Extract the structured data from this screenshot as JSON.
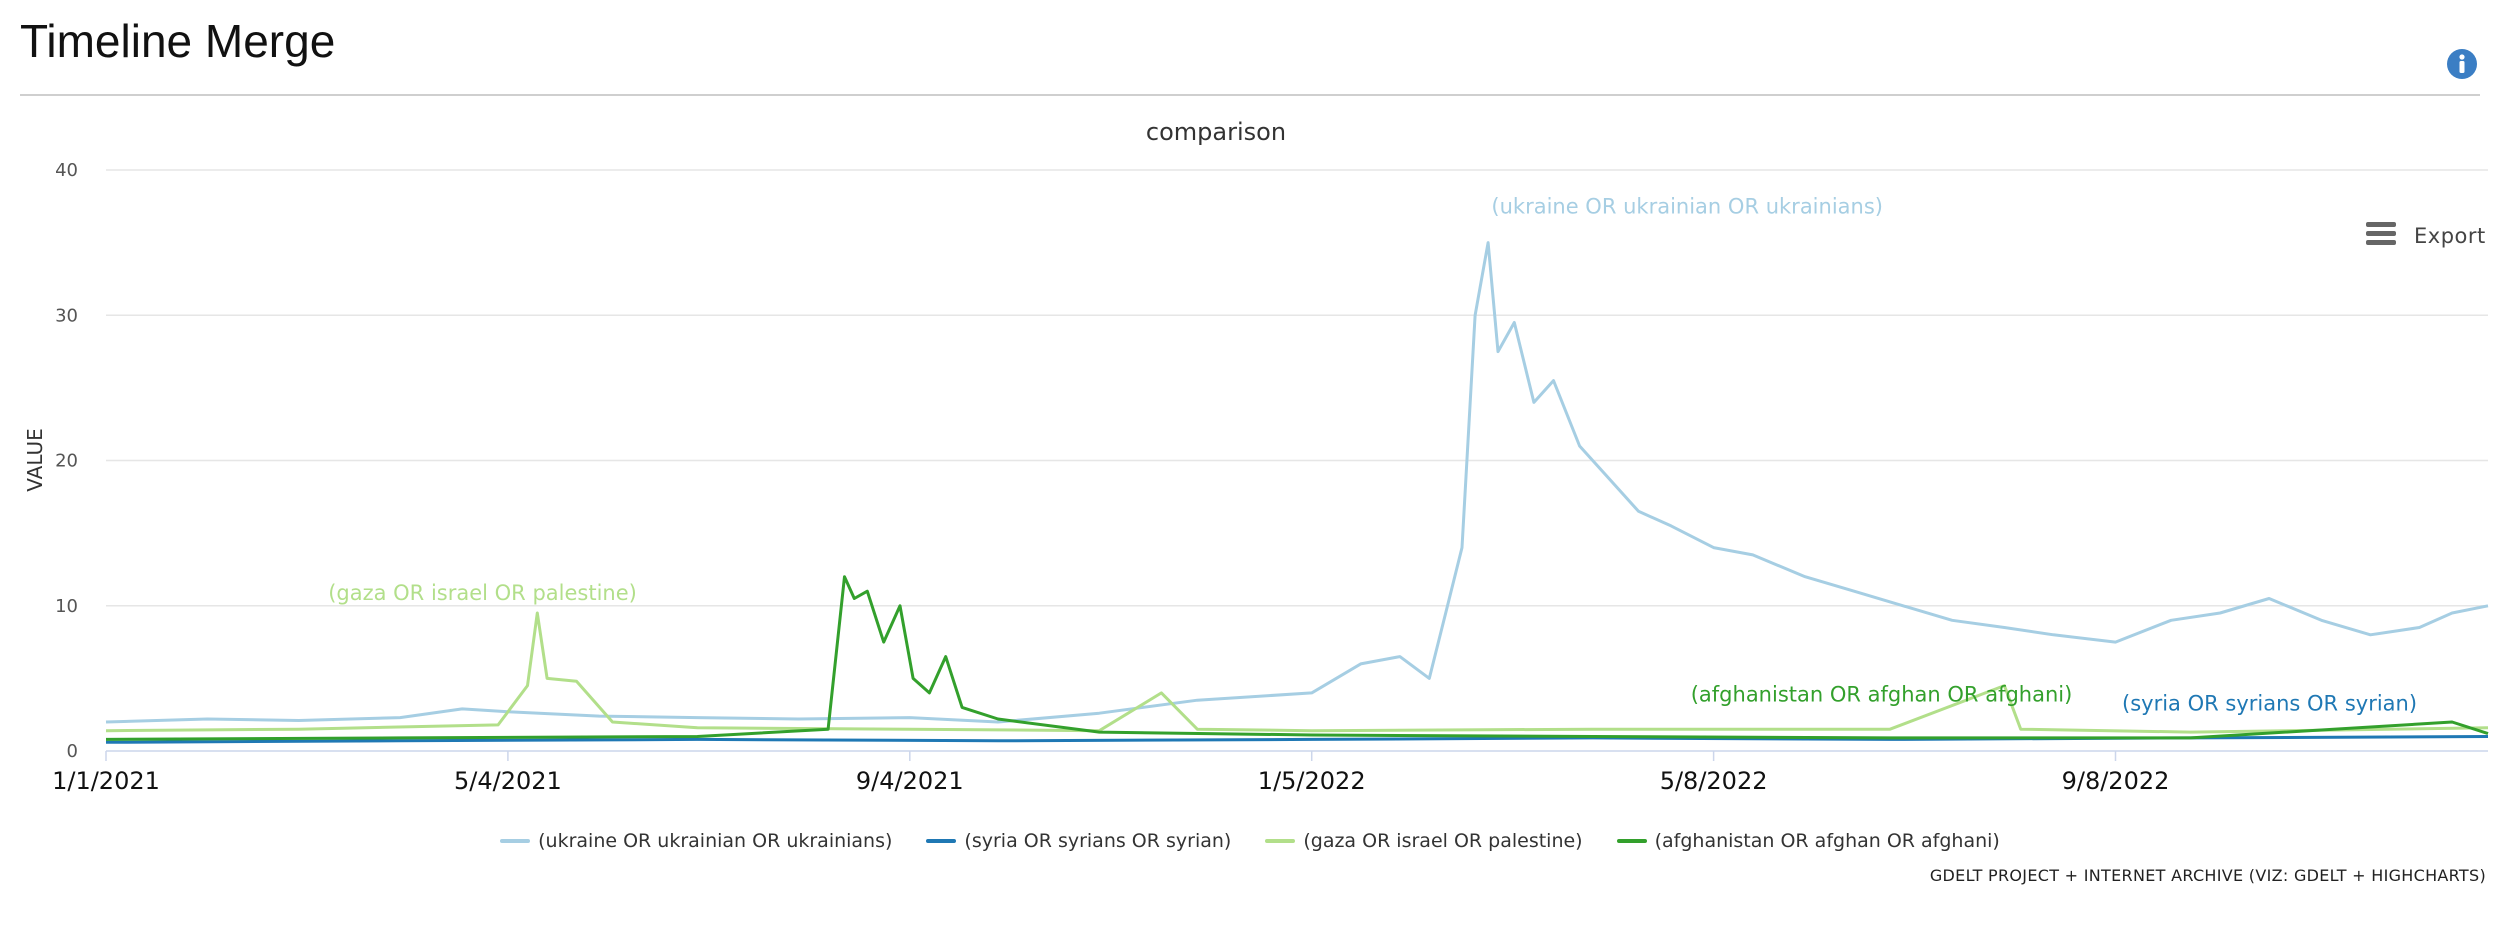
{
  "page": {
    "title": "Timeline Merge"
  },
  "toolbar": {
    "export_label": "Export"
  },
  "icons": {
    "info": "info-icon",
    "menu": "hamburger-icon"
  },
  "credits": "GDELT PROJECT + INTERNET ARCHIVE (VIZ: GDELT + HIGHCHARTS)",
  "chart_data": {
    "type": "line",
    "title": "comparison",
    "ylabel": "VALUE",
    "xlabel": "",
    "ylim": [
      0,
      40
    ],
    "yticks": [
      0,
      10,
      20,
      30,
      40
    ],
    "xlim": [
      "2021-01-01",
      "2022-12-31"
    ],
    "xticks": [
      {
        "date": "2021-01-01",
        "label": "1/1/2021"
      },
      {
        "date": "2021-05-04",
        "label": "5/4/2021"
      },
      {
        "date": "2021-09-04",
        "label": "9/4/2021"
      },
      {
        "date": "2022-01-05",
        "label": "1/5/2022"
      },
      {
        "date": "2022-05-08",
        "label": "5/8/2022"
      },
      {
        "date": "2022-09-08",
        "label": "9/8/2022"
      }
    ],
    "grid": true,
    "legend_position": "bottom-center",
    "series": [
      {
        "name": "(ukraine OR ukrainian OR ukrainians)",
        "color": "#a6cee3",
        "points": [
          [
            "2021-01-01",
            2.0
          ],
          [
            "2021-02-01",
            2.2
          ],
          [
            "2021-03-01",
            2.1
          ],
          [
            "2021-04-01",
            2.3
          ],
          [
            "2021-04-20",
            2.9
          ],
          [
            "2021-05-04",
            2.7
          ],
          [
            "2021-06-01",
            2.4
          ],
          [
            "2021-07-01",
            2.3
          ],
          [
            "2021-08-01",
            2.2
          ],
          [
            "2021-09-04",
            2.3
          ],
          [
            "2021-10-01",
            2.0
          ],
          [
            "2021-11-01",
            2.6
          ],
          [
            "2021-12-01",
            3.5
          ],
          [
            "2022-01-05",
            4.0
          ],
          [
            "2022-01-20",
            6.0
          ],
          [
            "2022-02-01",
            6.5
          ],
          [
            "2022-02-10",
            5.0
          ],
          [
            "2022-02-15",
            9.5
          ],
          [
            "2022-02-20",
            14.0
          ],
          [
            "2022-02-24",
            30.0
          ],
          [
            "2022-02-28",
            35.0
          ],
          [
            "2022-03-03",
            27.5
          ],
          [
            "2022-03-08",
            29.5
          ],
          [
            "2022-03-14",
            24.0
          ],
          [
            "2022-03-20",
            25.5
          ],
          [
            "2022-03-28",
            21.0
          ],
          [
            "2022-04-05",
            19.0
          ],
          [
            "2022-04-15",
            16.5
          ],
          [
            "2022-04-25",
            15.5
          ],
          [
            "2022-05-08",
            14.0
          ],
          [
            "2022-05-20",
            13.5
          ],
          [
            "2022-06-05",
            12.0
          ],
          [
            "2022-06-20",
            11.0
          ],
          [
            "2022-07-05",
            10.0
          ],
          [
            "2022-07-20",
            9.0
          ],
          [
            "2022-08-05",
            8.5
          ],
          [
            "2022-08-20",
            8.0
          ],
          [
            "2022-09-08",
            7.5
          ],
          [
            "2022-09-25",
            9.0
          ],
          [
            "2022-10-10",
            9.5
          ],
          [
            "2022-10-25",
            10.5
          ],
          [
            "2022-11-10",
            9.0
          ],
          [
            "2022-11-25",
            8.0
          ],
          [
            "2022-12-10",
            8.5
          ],
          [
            "2022-12-20",
            9.5
          ],
          [
            "2022-12-31",
            10.0
          ]
        ],
        "annotation": {
          "label": "(ukraine OR ukrainian OR ukrainians)",
          "date": "2022-03-01",
          "value": 37
        }
      },
      {
        "name": "(syria OR syrians OR syrian)",
        "color": "#1f78b4",
        "points": [
          [
            "2021-01-01",
            0.6
          ],
          [
            "2021-04-01",
            0.7
          ],
          [
            "2021-07-01",
            0.8
          ],
          [
            "2021-10-01",
            0.7
          ],
          [
            "2022-01-05",
            0.8
          ],
          [
            "2022-04-01",
            0.9
          ],
          [
            "2022-07-01",
            0.8
          ],
          [
            "2022-10-01",
            0.9
          ],
          [
            "2022-12-31",
            1.0
          ]
        ],
        "annotation": {
          "label": "(syria OR syrians OR syrian)",
          "date": "2022-09-10",
          "value": 2.8
        }
      },
      {
        "name": "(gaza OR israel OR palestine)",
        "color": "#b2df8a",
        "points": [
          [
            "2021-01-01",
            1.4
          ],
          [
            "2021-03-01",
            1.5
          ],
          [
            "2021-05-01",
            1.8
          ],
          [
            "2021-05-10",
            4.5
          ],
          [
            "2021-05-13",
            9.5
          ],
          [
            "2021-05-16",
            5.0
          ],
          [
            "2021-05-25",
            4.8
          ],
          [
            "2021-06-05",
            2.0
          ],
          [
            "2021-07-01",
            1.6
          ],
          [
            "2021-09-04",
            1.5
          ],
          [
            "2021-11-01",
            1.4
          ],
          [
            "2021-11-20",
            4.0
          ],
          [
            "2021-12-01",
            1.5
          ],
          [
            "2022-01-05",
            1.4
          ],
          [
            "2022-04-01",
            1.5
          ],
          [
            "2022-07-01",
            1.5
          ],
          [
            "2022-08-05",
            4.5
          ],
          [
            "2022-08-10",
            1.5
          ],
          [
            "2022-10-01",
            1.3
          ],
          [
            "2022-12-31",
            1.6
          ]
        ],
        "annotation": {
          "label": "(gaza OR israel OR palestine)",
          "date": "2021-03-10",
          "value": 10.4
        }
      },
      {
        "name": "(afghanistan OR afghan OR afghani)",
        "color": "#33a02c",
        "points": [
          [
            "2021-01-01",
            0.8
          ],
          [
            "2021-04-01",
            0.9
          ],
          [
            "2021-07-01",
            1.0
          ],
          [
            "2021-08-10",
            1.5
          ],
          [
            "2021-08-15",
            12.0
          ],
          [
            "2021-08-18",
            10.5
          ],
          [
            "2021-08-22",
            11.0
          ],
          [
            "2021-08-27",
            7.5
          ],
          [
            "2021-09-01",
            10.0
          ],
          [
            "2021-09-05",
            5.0
          ],
          [
            "2021-09-10",
            4.0
          ],
          [
            "2021-09-15",
            6.5
          ],
          [
            "2021-09-20",
            3.0
          ],
          [
            "2021-10-01",
            2.2
          ],
          [
            "2021-11-01",
            1.3
          ],
          [
            "2022-01-05",
            1.1
          ],
          [
            "2022-04-01",
            1.0
          ],
          [
            "2022-07-01",
            0.9
          ],
          [
            "2022-10-01",
            0.9
          ],
          [
            "2022-12-20",
            2.0
          ],
          [
            "2022-12-31",
            1.2
          ]
        ],
        "annotation": {
          "label": "(afghanistan OR afghan OR afghani)",
          "date": "2022-05-01",
          "value": 3.4
        }
      }
    ]
  }
}
